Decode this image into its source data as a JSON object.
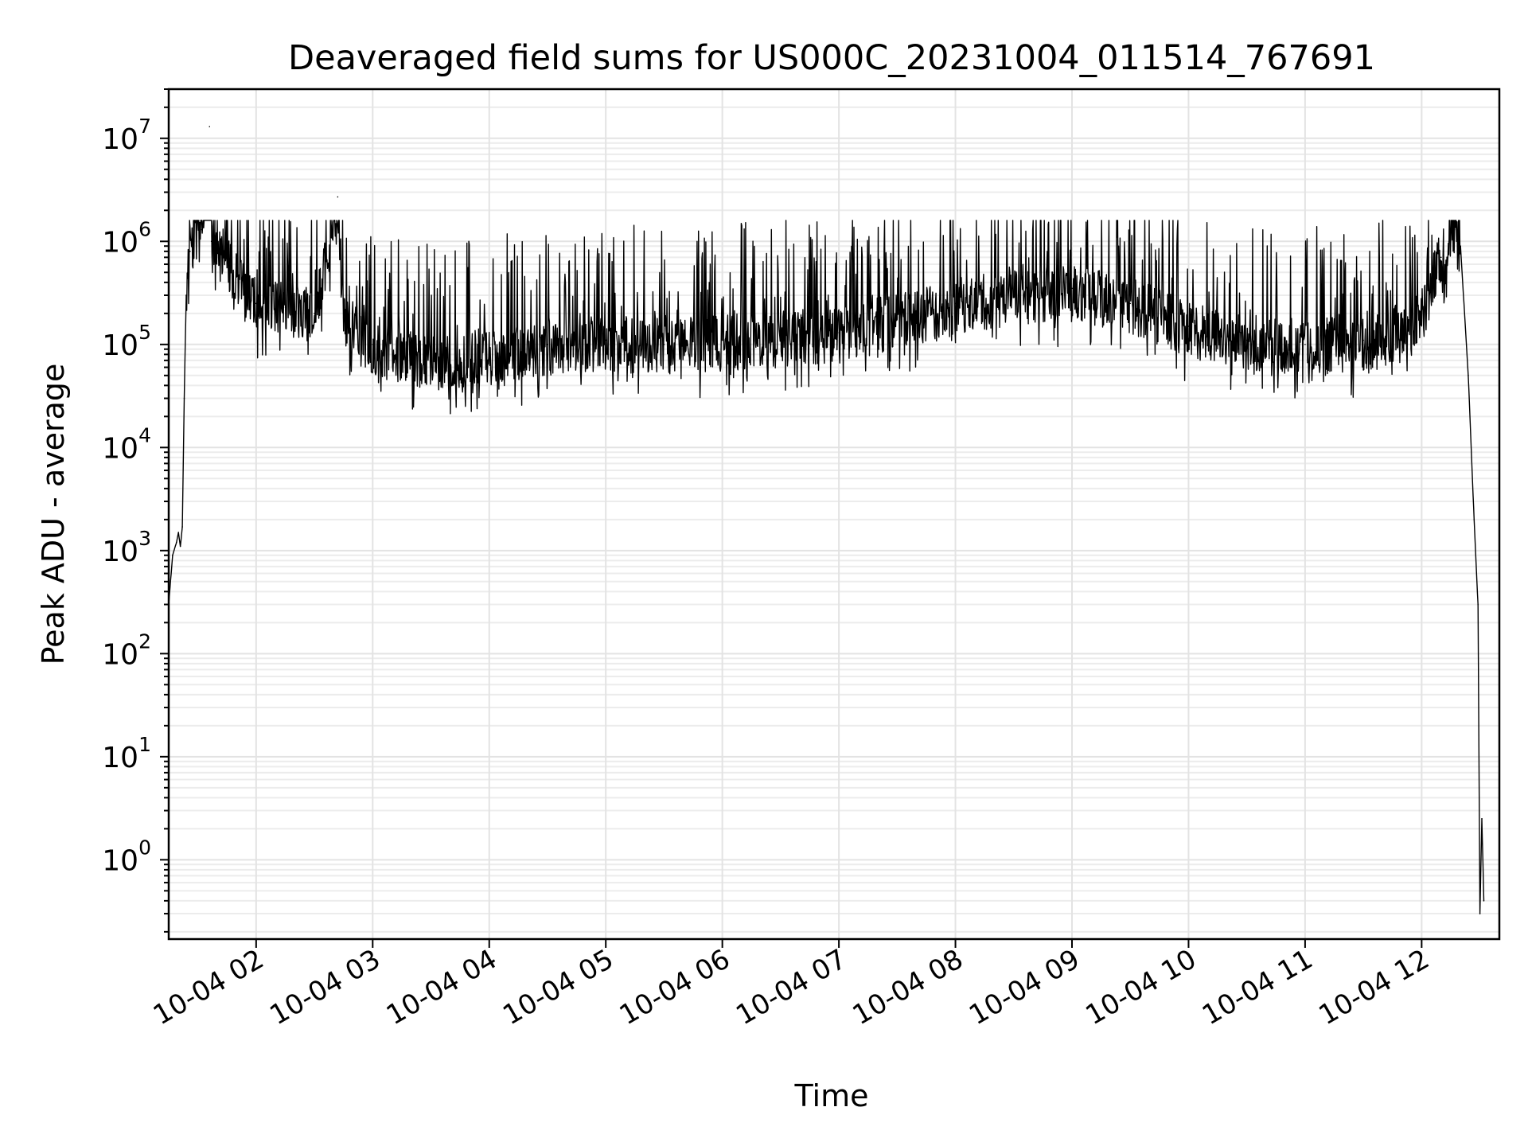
{
  "chart_data": {
    "type": "line",
    "title": "Deaveraged field sums for US000C_20231004_011514_767691",
    "xlabel": "Time",
    "ylabel": "Peak ADU - average",
    "y_scale": "log",
    "grid": "major and minor, light grey",
    "line_color": "#000000",
    "x_ticks": [
      "2023-10-04 02:00",
      "2023-10-04 03:00",
      "2023-10-04 04:00",
      "2023-10-04 05:00",
      "2023-10-04 06:00",
      "2023-10-04 07:00",
      "2023-10-04 08:00",
      "2023-10-04 09:00",
      "2023-10-04 10:00",
      "2023-10-04 11:00",
      "2023-10-04 12:00"
    ],
    "x_tick_labels": [
      "10-04 02",
      "10-04 03",
      "10-04 04",
      "10-04 05",
      "10-04 06",
      "10-04 07",
      "10-04 08",
      "10-04 09",
      "10-04 10",
      "10-04 11",
      "10-04 12"
    ],
    "y_tick_labels": [
      {
        "base": "10",
        "exp": "0"
      },
      {
        "base": "10",
        "exp": "1"
      },
      {
        "base": "10",
        "exp": "2"
      },
      {
        "base": "10",
        "exp": "3"
      },
      {
        "base": "10",
        "exp": "4"
      },
      {
        "base": "10",
        "exp": "5"
      },
      {
        "base": "10",
        "exp": "6"
      },
      {
        "base": "10",
        "exp": "7"
      }
    ],
    "y_tick_values": [
      1,
      10,
      100,
      1000,
      10000,
      100000,
      1000000,
      10000000
    ],
    "xlim": [
      "2023-10-04 01:15",
      "2023-10-04 12:40"
    ],
    "ylim": [
      0.17,
      30000000
    ],
    "series": [
      {
        "points": [
          [
            "2023-10-04 01:15",
            300
          ],
          [
            "2023-10-04 01:17",
            900
          ],
          [
            "2023-10-04 01:19",
            1200
          ],
          [
            "2023-10-04 01:20",
            1500
          ],
          [
            "2023-10-04 01:21",
            1100
          ],
          [
            "2023-10-04 01:22",
            1700
          ],
          [
            "2023-10-04 01:23",
            30000
          ],
          [
            "2023-10-04 01:24",
            300000
          ],
          [
            "2023-10-04 01:26",
            800000
          ],
          [
            "2023-10-04 01:28",
            1200000
          ],
          [
            "2023-10-04 01:32",
            1300000
          ],
          [
            "2023-10-04 01:36",
            13000000
          ],
          [
            "2023-10-04 01:37",
            1000000
          ],
          [
            "2023-10-04 01:40",
            900000
          ],
          [
            "2023-10-04 01:45",
            700000
          ],
          [
            "2023-10-04 01:50",
            500000
          ],
          [
            "2023-10-04 01:55",
            300000
          ],
          [
            "2023-10-04 02:00",
            250000
          ],
          [
            "2023-10-04 02:15",
            230000
          ],
          [
            "2023-10-04 02:30",
            200000
          ],
          [
            "2023-10-04 02:42",
            2700000
          ],
          [
            "2023-10-04 02:45",
            180000
          ],
          [
            "2023-10-04 03:00",
            100000
          ],
          [
            "2023-10-04 03:15",
            80000
          ],
          [
            "2023-10-04 03:30",
            70000
          ],
          [
            "2023-10-04 04:00",
            80000
          ],
          [
            "2023-10-04 04:30",
            100000
          ],
          [
            "2023-10-04 05:00",
            110000
          ],
          [
            "2023-10-04 05:30",
            100000
          ],
          [
            "2023-10-04 06:00",
            110000
          ],
          [
            "2023-10-04 06:30",
            120000
          ],
          [
            "2023-10-04 07:00",
            130000
          ],
          [
            "2023-10-04 07:30",
            180000
          ],
          [
            "2023-10-04 08:00",
            250000
          ],
          [
            "2023-10-04 08:30",
            300000
          ],
          [
            "2023-10-04 09:00",
            350000
          ],
          [
            "2023-10-04 09:30",
            250000
          ],
          [
            "2023-10-04 10:00",
            150000
          ],
          [
            "2023-10-04 10:30",
            110000
          ],
          [
            "2023-10-04 11:00",
            100000
          ],
          [
            "2023-10-04 11:30",
            110000
          ],
          [
            "2023-10-04 11:50",
            120000
          ],
          [
            "2023-10-04 12:00",
            200000
          ],
          [
            "2023-10-04 12:05",
            400000
          ],
          [
            "2023-10-04 12:10",
            700000
          ],
          [
            "2023-10-04 12:14",
            1000000
          ],
          [
            "2023-10-04 12:17",
            1300000
          ],
          [
            "2023-10-04 12:20",
            900000
          ],
          [
            "2023-10-04 12:24",
            50000
          ],
          [
            "2023-10-04 12:27",
            2000
          ],
          [
            "2023-10-04 12:29",
            300
          ],
          [
            "2023-10-04 12:30",
            0.3
          ],
          [
            "2023-10-04 12:31",
            2.5
          ],
          [
            "2023-10-04 12:32",
            0.4
          ]
        ]
      }
    ]
  }
}
